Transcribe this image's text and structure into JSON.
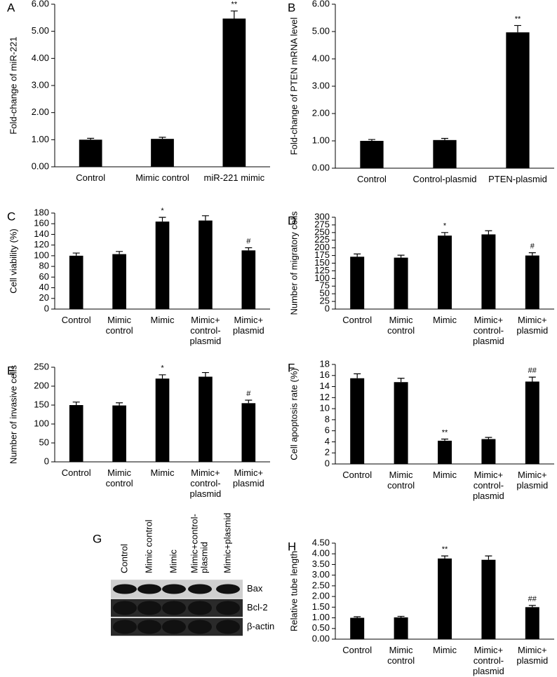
{
  "chart_data": [
    {
      "type": "bar",
      "panel_label": "A",
      "ylabel": "Fold-change of miR-221",
      "categories": [
        "Control",
        "Mimic control",
        "miR-221 mimic"
      ],
      "values": [
        1.0,
        1.03,
        5.47
      ],
      "errors": [
        0.05,
        0.06,
        0.28
      ],
      "annotations": [
        null,
        null,
        "**"
      ],
      "color": "#000000",
      "ylim": [
        0,
        6
      ],
      "yticks": [
        {
          "value": 0,
          "label": "0.00"
        },
        {
          "value": 1,
          "label": "1.00"
        },
        {
          "value": 2,
          "label": "2.00"
        },
        {
          "value": 3,
          "label": "3.00"
        },
        {
          "value": 4,
          "label": "4.00"
        },
        {
          "value": 5,
          "label": "5.00"
        },
        {
          "value": 6,
          "label": "6.00"
        }
      ]
    },
    {
      "type": "bar",
      "panel_label": "B",
      "ylabel": "Fold-change of PTEN mRNA level",
      "categories": [
        "Control",
        "Control-plasmid",
        "PTEN-plasmid"
      ],
      "values": [
        1.0,
        1.03,
        4.97
      ],
      "errors": [
        0.05,
        0.06,
        0.25
      ],
      "annotations": [
        null,
        null,
        "**"
      ],
      "color": "#000000",
      "ylim": [
        0,
        6
      ],
      "yticks": [
        {
          "value": 0,
          "label": "0.00"
        },
        {
          "value": 1,
          "label": "1.00"
        },
        {
          "value": 2,
          "label": "2.00"
        },
        {
          "value": 3,
          "label": "3.00"
        },
        {
          "value": 4,
          "label": "4.00"
        },
        {
          "value": 5,
          "label": "5.00"
        },
        {
          "value": 6,
          "label": "6.00"
        }
      ]
    },
    {
      "type": "bar",
      "panel_label": "C",
      "ylabel": "Cell viability (%)",
      "categories": [
        "Control",
        "Mimic\ncontrol",
        "Mimic",
        "Mimic+\ncontrol-\nplasmid",
        "Mimic+\nplasmid"
      ],
      "values": [
        100,
        103,
        164,
        166,
        110
      ],
      "errors": [
        5,
        5,
        8,
        9,
        5
      ],
      "annotations": [
        null,
        null,
        "*",
        null,
        "#"
      ],
      "color": "#000000",
      "ylim": [
        0,
        180
      ],
      "yticks": [
        0,
        20,
        40,
        60,
        80,
        100,
        120,
        140,
        160,
        180
      ]
    },
    {
      "type": "bar",
      "panel_label": "D",
      "ylabel": "Number of migratory cells",
      "categories": [
        "Control",
        "Mimic\ncontrol",
        "Mimic",
        "Mimic+\ncontrol-\nplasmid",
        "Mimic+\nplasmid"
      ],
      "values": [
        171,
        168,
        240,
        244,
        175
      ],
      "errors": [
        9,
        8,
        10,
        12,
        9
      ],
      "annotations": [
        null,
        null,
        "*",
        null,
        "#"
      ],
      "color": "#000000",
      "ylim": [
        0,
        300
      ],
      "yticks": [
        0,
        25,
        50,
        75,
        100,
        125,
        150,
        175,
        200,
        225,
        250,
        275,
        300
      ]
    },
    {
      "type": "bar",
      "panel_label": "E",
      "ylabel": "Number of invasive cells",
      "categories": [
        "Control",
        "Mimic\ncontrol",
        "Mimic",
        "Mimic+\ncontrol-\nplasmid",
        "Mimic+\nplasmid"
      ],
      "values": [
        150,
        149,
        220,
        225,
        155
      ],
      "errors": [
        8,
        7,
        10,
        11,
        8
      ],
      "annotations": [
        null,
        null,
        "*",
        null,
        "#"
      ],
      "color": "#000000",
      "ylim": [
        0,
        250
      ],
      "yticks": [
        0,
        50,
        100,
        150,
        200,
        250
      ]
    },
    {
      "type": "bar",
      "panel_label": "F",
      "ylabel": "Cell apoptosis rate (%)",
      "categories": [
        "Control",
        "Mimic\ncontrol",
        "Mimic",
        "Mimic+\ncontrol-\nplasmid",
        "Mimic+\nplasmid"
      ],
      "values": [
        15.5,
        14.8,
        4.2,
        4.5,
        14.9
      ],
      "errors": [
        0.8,
        0.7,
        0.3,
        0.3,
        0.8
      ],
      "annotations": [
        null,
        null,
        "**",
        null,
        "##"
      ],
      "color": "#000000",
      "ylim": [
        0,
        18
      ],
      "yticks": [
        0,
        2,
        4,
        6,
        8,
        10,
        12,
        14,
        16,
        18
      ]
    },
    {
      "type": "bar",
      "panel_label": "H",
      "ylabel": "Relative tube length",
      "categories": [
        "Control",
        "Mimic\ncontrol",
        "Mimic",
        "Mimic+\ncontrol-\nplasmid",
        "Mimic+\nplasmid"
      ],
      "values": [
        1.0,
        1.02,
        3.78,
        3.72,
        1.5
      ],
      "errors": [
        0.05,
        0.05,
        0.12,
        0.18,
        0.08
      ],
      "annotations": [
        null,
        null,
        "**",
        null,
        "##"
      ],
      "color": "#000000",
      "ylim": [
        0,
        4.5
      ],
      "yticks": [
        {
          "value": 0,
          "label": "0.00"
        },
        {
          "value": 0.5,
          "label": "0.50"
        },
        {
          "value": 1,
          "label": "1.00"
        },
        {
          "value": 1.5,
          "label": "1.50"
        },
        {
          "value": 2,
          "label": "2.00"
        },
        {
          "value": 2.5,
          "label": "2.50"
        },
        {
          "value": 3,
          "label": "3.00"
        },
        {
          "value": 3.5,
          "label": "3.50"
        },
        {
          "value": 4,
          "label": "4.00"
        },
        {
          "value": 4.5,
          "label": "4.50"
        }
      ]
    }
  ],
  "blot": {
    "panel_label": "G",
    "lanes": [
      [
        "Control"
      ],
      [
        "Mimic control"
      ],
      [
        "Mimic"
      ],
      [
        "Mimic+control-",
        "plasmid"
      ],
      [
        "Mimic+plasmid"
      ]
    ],
    "rows": [
      "Bax",
      "Bcl-2",
      "β-actin"
    ]
  }
}
